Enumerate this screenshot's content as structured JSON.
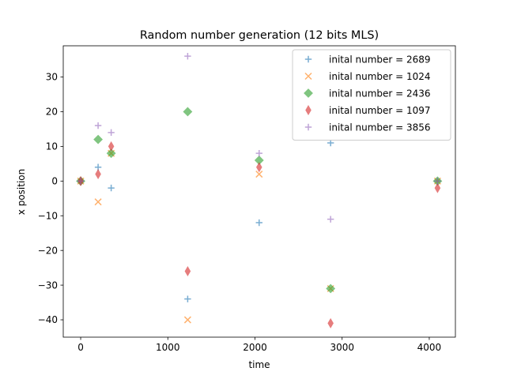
{
  "chart_data": {
    "type": "scatter",
    "title": "Random number generation (12 bits MLS)",
    "xlabel": "time",
    "ylabel": "x position",
    "xlim": [
      -200,
      4300
    ],
    "ylim": [
      -45,
      39
    ],
    "xticks": [
      0,
      1000,
      2000,
      3000,
      4000
    ],
    "xtick_labels": [
      "0",
      "1000",
      "2000",
      "3000",
      "4000"
    ],
    "yticks": [
      -40,
      -30,
      -20,
      -10,
      0,
      10,
      20,
      30
    ],
    "ytick_labels": [
      "−40",
      "−30",
      "−20",
      "−10",
      "0",
      "10",
      "20",
      "30"
    ],
    "grid": false,
    "legend_position": "top-right",
    "series": [
      {
        "name": "inital number = 2689",
        "marker": "plus",
        "color": "#1f77b4",
        "points": [
          [
            0,
            0
          ],
          [
            200,
            4
          ],
          [
            350,
            -2
          ],
          [
            1228,
            -34
          ],
          [
            2048,
            -12
          ],
          [
            2868,
            11
          ],
          [
            4095,
            0
          ]
        ]
      },
      {
        "name": "inital number = 1024",
        "marker": "x",
        "color": "#ff7f0e",
        "points": [
          [
            0,
            0
          ],
          [
            200,
            -6
          ],
          [
            350,
            8
          ],
          [
            1228,
            -40
          ],
          [
            2048,
            2
          ],
          [
            2868,
            -31
          ],
          [
            4095,
            0
          ]
        ]
      },
      {
        "name": "inital number = 2436",
        "marker": "diamond",
        "color": "#2ca02c",
        "points": [
          [
            0,
            0
          ],
          [
            200,
            12
          ],
          [
            350,
            8
          ],
          [
            1228,
            20
          ],
          [
            2048,
            6
          ],
          [
            2868,
            -31
          ],
          [
            4095,
            0
          ]
        ]
      },
      {
        "name": "inital number = 1097",
        "marker": "thin_diamond",
        "color": "#d62728",
        "points": [
          [
            0,
            0
          ],
          [
            200,
            2
          ],
          [
            350,
            10
          ],
          [
            1228,
            -26
          ],
          [
            2048,
            4
          ],
          [
            2868,
            -41
          ],
          [
            4095,
            -2
          ]
        ]
      },
      {
        "name": "inital number = 3856",
        "marker": "plus",
        "color": "#9467bd",
        "points": [
          [
            0,
            0
          ],
          [
            200,
            16
          ],
          [
            350,
            14
          ],
          [
            1228,
            36
          ],
          [
            2048,
            8
          ],
          [
            2868,
            -11
          ],
          [
            4095,
            0
          ]
        ]
      }
    ]
  }
}
